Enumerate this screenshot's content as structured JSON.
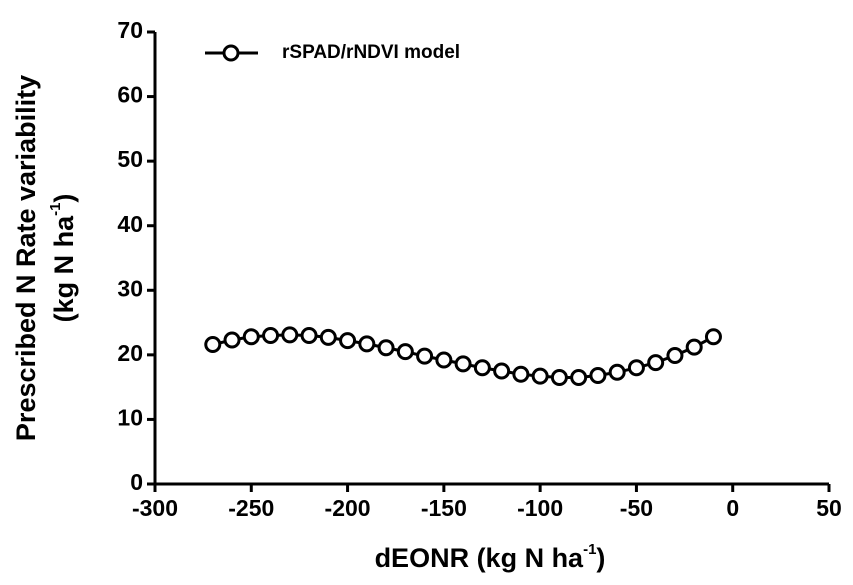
{
  "chart_data": {
    "type": "line",
    "x_label": [
      "dEONR (kg N ha",
      "-1",
      ")"
    ],
    "y_label": [
      "Prescribed N Rate variability",
      "(kg N ha",
      "-1",
      ")"
    ],
    "x": [
      -270,
      -260,
      -250,
      -240,
      -230,
      -220,
      -210,
      -200,
      -190,
      -180,
      -170,
      -160,
      -150,
      -140,
      -130,
      -120,
      -110,
      -100,
      -90,
      -80,
      -70,
      -60,
      -50,
      -40,
      -30,
      -20,
      -10
    ],
    "series": [
      {
        "name": "rSPAD/rNDVI model",
        "color": "#000000",
        "values": [
          21.6,
          22.3,
          22.8,
          23.0,
          23.1,
          23.0,
          22.7,
          22.2,
          21.7,
          21.1,
          20.5,
          19.8,
          19.2,
          18.6,
          18.0,
          17.5,
          17.0,
          16.7,
          16.5,
          16.5,
          16.8,
          17.3,
          18.0,
          18.8,
          19.9,
          21.2,
          22.8
        ]
      }
    ],
    "xlim": [
      -300,
      50
    ],
    "xticks": [
      -300,
      -250,
      -200,
      -150,
      -100,
      -50,
      0,
      50
    ],
    "ylim": [
      0,
      70
    ],
    "yticks": [
      0,
      10,
      20,
      30,
      40,
      50,
      60,
      70
    ],
    "grid": false,
    "legend": "top-left"
  }
}
